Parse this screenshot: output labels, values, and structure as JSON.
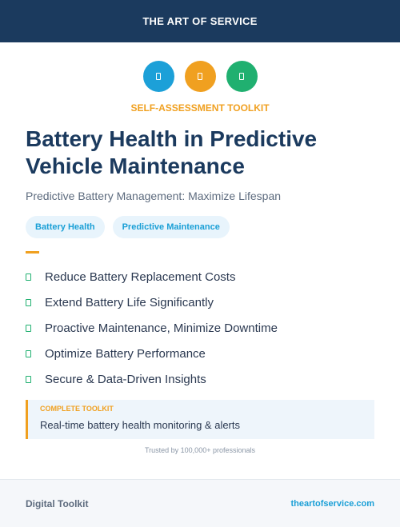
{
  "header": {
    "title": "THE ART OF SERVICE"
  },
  "icons": [
    {
      "name": "document-icon",
      "color": "#1ca0d8"
    },
    {
      "name": "clipboard-icon",
      "color": "#f0a020"
    },
    {
      "name": "checklist-icon",
      "color": "#20b070"
    }
  ],
  "eyebrow": "SELF-ASSESSMENT TOOLKIT",
  "title": "Battery Health in Predictive Vehicle Maintenance",
  "subtitle": "Predictive Battery Management: Maximize Lifespan",
  "tags": [
    "Battery Health",
    "Predictive Maintenance"
  ],
  "features": [
    "Reduce Battery Replacement Costs",
    "Extend Battery Life Significantly",
    "Proactive Maintenance, Minimize Downtime",
    "Optimize Battery Performance",
    "Secure & Data-Driven Insights"
  ],
  "toolkit": {
    "label": "COMPLETE TOOLKIT",
    "text": "Real-time battery health monitoring & alerts"
  },
  "trusted": "Trusted by 100,000+ professionals",
  "footer": {
    "left": "Digital Toolkit",
    "right": "theartofservice.com"
  },
  "colors": {
    "navy": "#1b3a5e",
    "orange": "#f0a020",
    "blue": "#1a9fd6",
    "green": "#20b070"
  }
}
